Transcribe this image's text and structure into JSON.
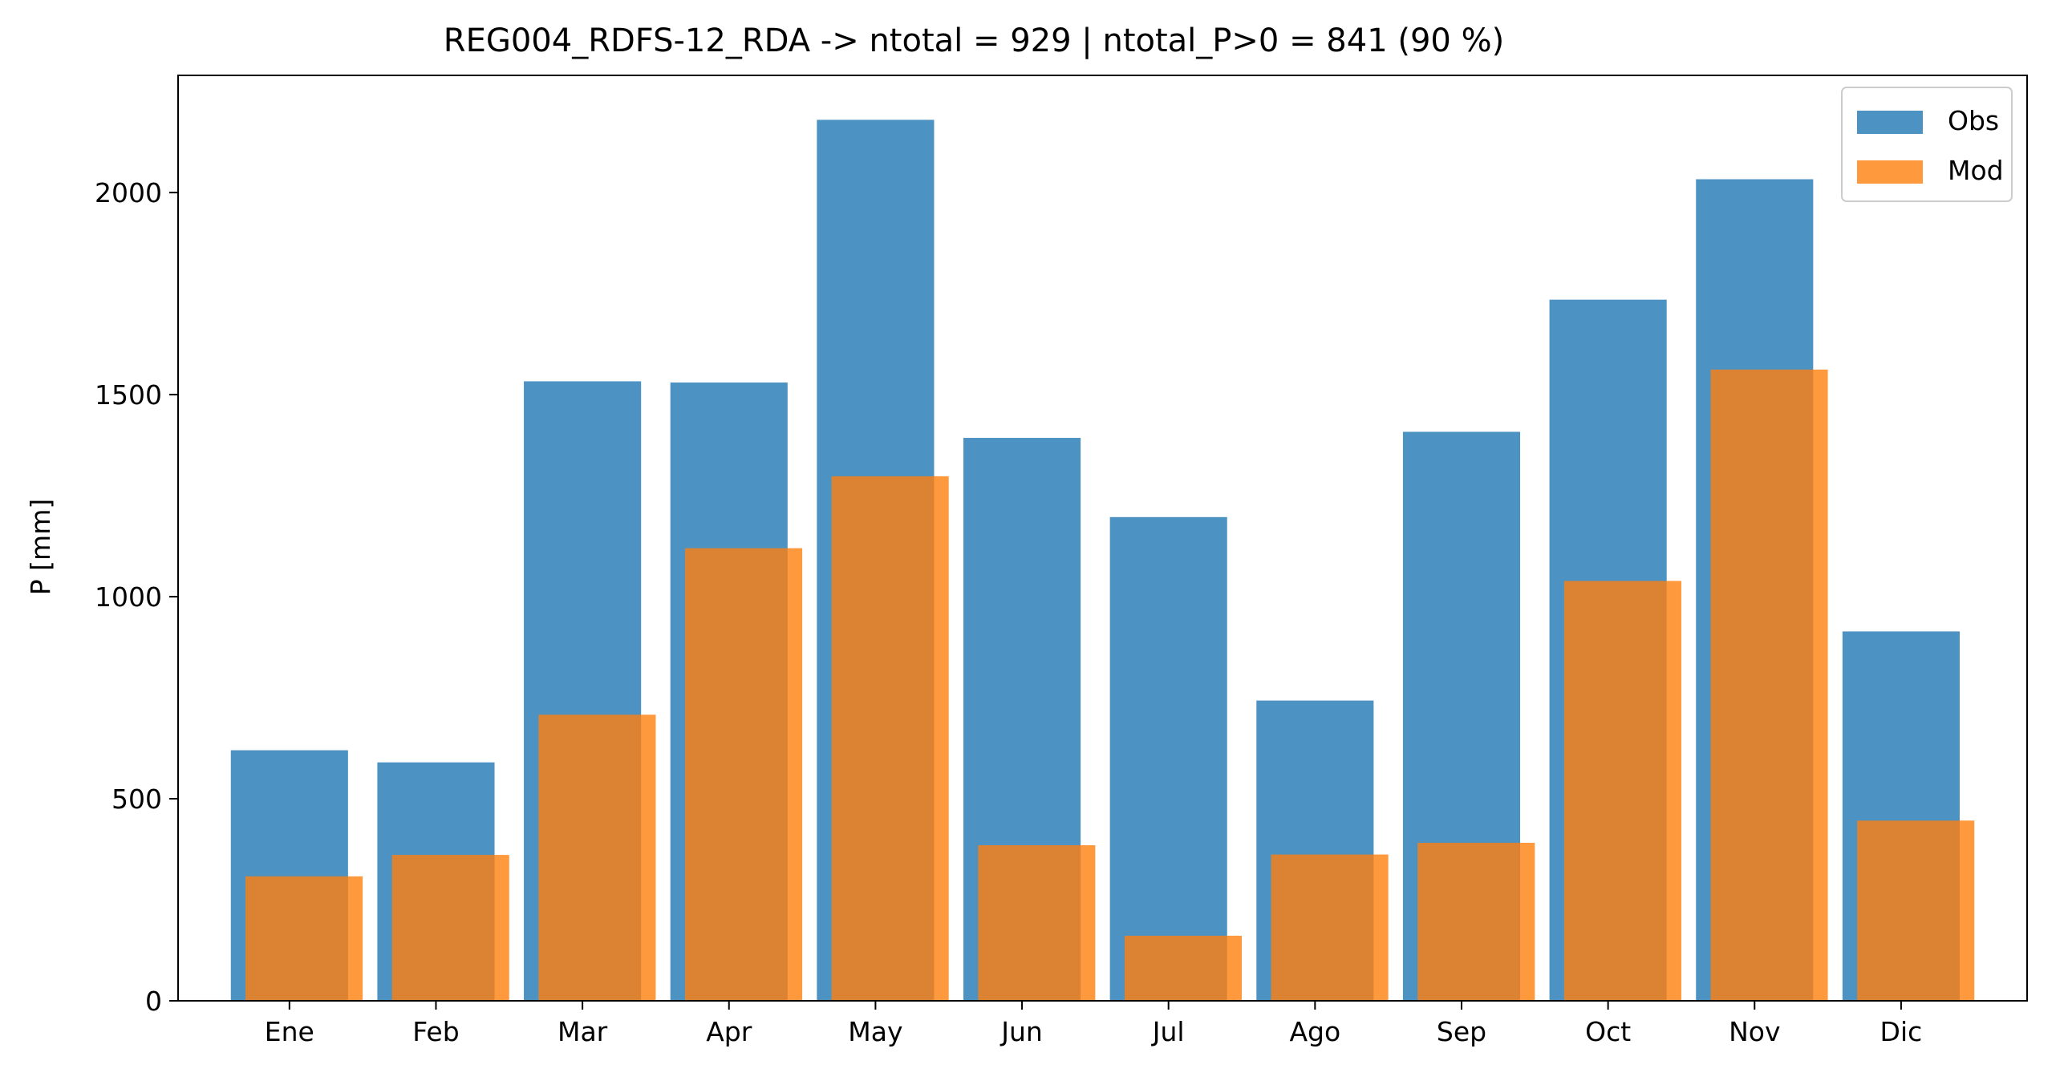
{
  "chart_data": {
    "type": "bar",
    "title": "REG004_RDFS-12_RDA -> ntotal = 929 | ntotal_P>0 = 841 (90 %)",
    "xlabel": "",
    "ylabel": "P [mm]",
    "categories": [
      "Ene",
      "Feb",
      "Mar",
      "Apr",
      "May",
      "Jun",
      "Jul",
      "Ago",
      "Sep",
      "Oct",
      "Nov",
      "Dic"
    ],
    "series": [
      {
        "name": "Obs",
        "color": "#1f77b4",
        "opacity": 0.8,
        "values": [
          620,
          590,
          1533,
          1530,
          2180,
          1393,
          1197,
          743,
          1408,
          1735,
          2033,
          914
        ]
      },
      {
        "name": "Mod",
        "color": "#ff7f0e",
        "opacity": 0.8,
        "values": [
          308,
          361,
          708,
          1120,
          1298,
          385,
          161,
          362,
          391,
          1039,
          1562,
          446
        ]
      }
    ],
    "ylim": [
      0,
      2290
    ],
    "yticks": [
      0,
      500,
      1000,
      1500,
      2000
    ],
    "grid": false,
    "legend_position": "top-right"
  }
}
